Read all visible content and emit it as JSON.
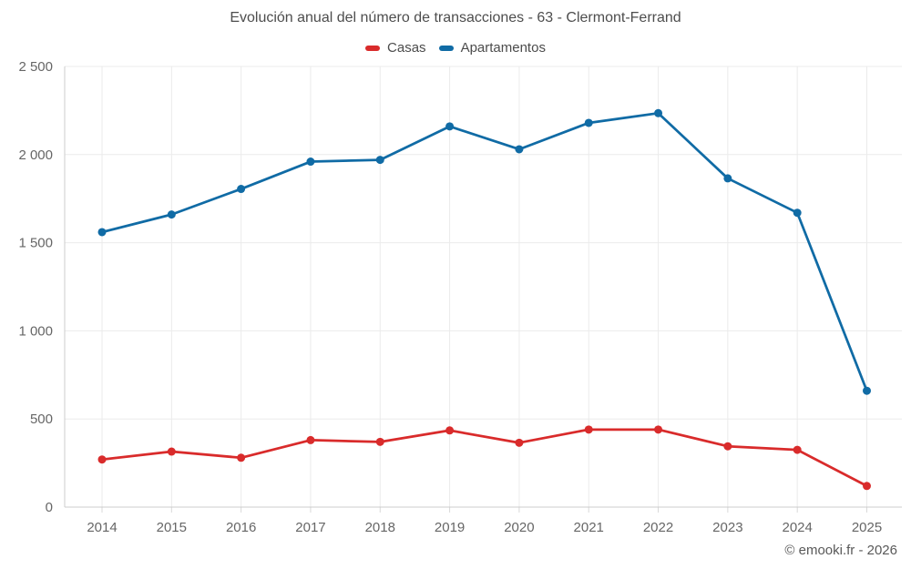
{
  "chart": {
    "title": "Evolución anual del número de transacciones - 63 - Clermont-Ferrand",
    "footer": "© emooki.fr - 2026",
    "colors": {
      "casas": "#d92b2b",
      "apartamentos": "#106ba5",
      "gridline": "#ebebeb",
      "axis_line": "#cccccc",
      "tick_mark": "#d9d9d9",
      "axis_text": "#666666",
      "title_text": "#4d4d4d"
    }
  },
  "chart_data": {
    "type": "line",
    "title": "Evolución anual del número de transacciones - 63 - Clermont-Ferrand",
    "xlabel": "",
    "ylabel": "",
    "categories": [
      "2014",
      "2015",
      "2016",
      "2017",
      "2018",
      "2019",
      "2020",
      "2021",
      "2022",
      "2023",
      "2024",
      "2025"
    ],
    "series": [
      {
        "name": "Casas",
        "color": "#d92b2b",
        "values": [
          270,
          315,
          280,
          380,
          370,
          435,
          365,
          440,
          440,
          345,
          325,
          120
        ]
      },
      {
        "name": "Apartamentos",
        "color": "#106ba5",
        "values": [
          1560,
          1660,
          1805,
          1960,
          1970,
          2160,
          2030,
          2180,
          2235,
          1865,
          1670,
          660
        ]
      }
    ],
    "ylim": [
      0,
      2500
    ],
    "yticks": [
      0,
      500,
      1000,
      1500,
      2000,
      2500
    ],
    "ytick_labels": [
      "0",
      "500",
      "1 000",
      "1 500",
      "2 000",
      "2 500"
    ],
    "grid": true,
    "legend_position": "top"
  }
}
